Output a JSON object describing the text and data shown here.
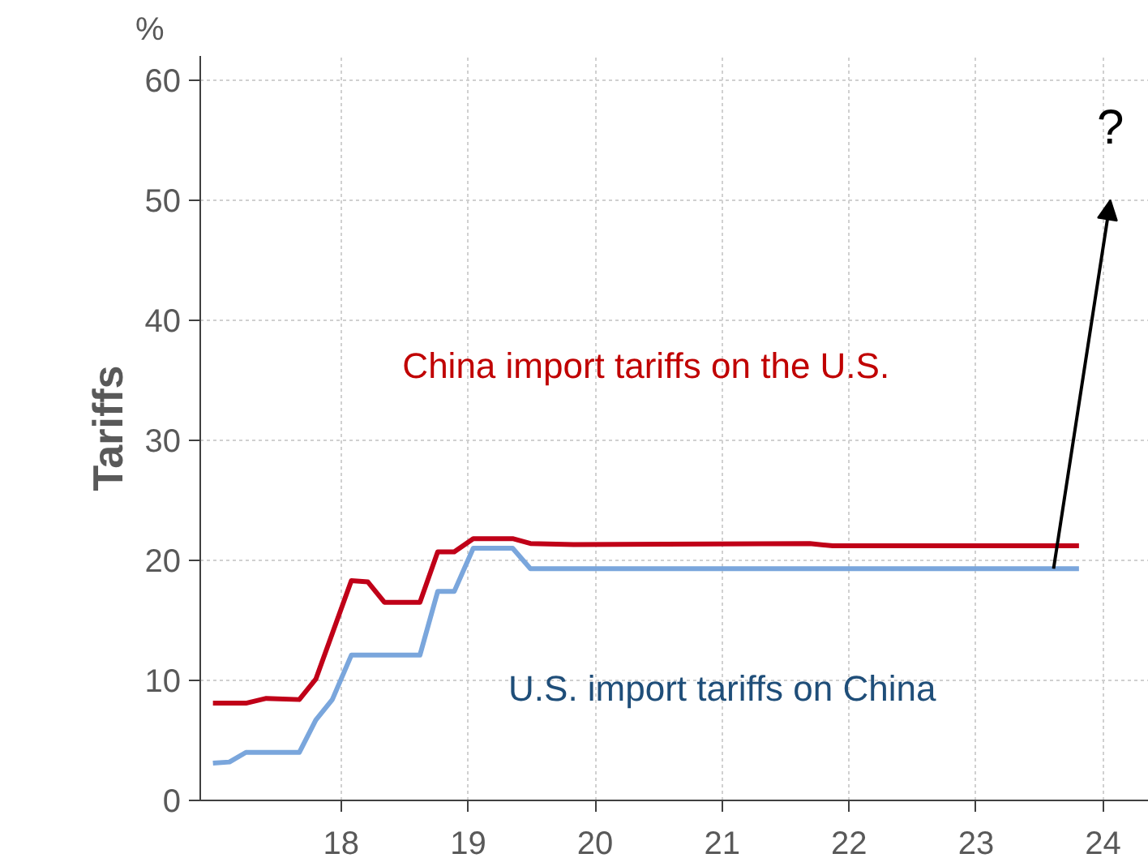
{
  "chart_data": {
    "type": "line",
    "ylabel": "Tariffs",
    "x": [
      16.99,
      17.25,
      17.41,
      17.67,
      17.8,
      18.08,
      18.21,
      18.34,
      18.62,
      18.76,
      18.89,
      19.04,
      19.35,
      19.49,
      19.83,
      21.69,
      21.87,
      23.81
    ],
    "series": [
      {
        "name": "China import tariffs on the U.S.",
        "color": "#c00018",
        "values": [
          8.1,
          8.1,
          8.5,
          8.4,
          10.1,
          18.3,
          18.2,
          16.5,
          16.5,
          20.7,
          20.7,
          21.8,
          21.8,
          21.4,
          21.3,
          21.4,
          21.2,
          21.2
        ]
      },
      {
        "name": "U.S. import tariffs on China",
        "color": "#7aa6dc",
        "x": [
          16.99,
          17.12,
          17.25,
          17.67,
          17.8,
          17.93,
          18.08,
          18.62,
          18.76,
          18.89,
          19.04,
          19.35,
          19.49,
          23.81
        ],
        "values": [
          3.1,
          3.2,
          4.0,
          4.0,
          6.7,
          8.4,
          12.1,
          12.1,
          17.4,
          17.4,
          21.0,
          21.0,
          19.3,
          19.3
        ]
      }
    ],
    "xlim": [
      16.89,
      24.36
    ],
    "ylim": [
      0,
      62
    ],
    "xticks": [
      18,
      19,
      20,
      21,
      22,
      23,
      24
    ],
    "yticks": [
      0,
      10,
      20,
      30,
      40,
      50,
      60
    ],
    "grid": true,
    "annotations": [
      "%",
      "?"
    ]
  }
}
